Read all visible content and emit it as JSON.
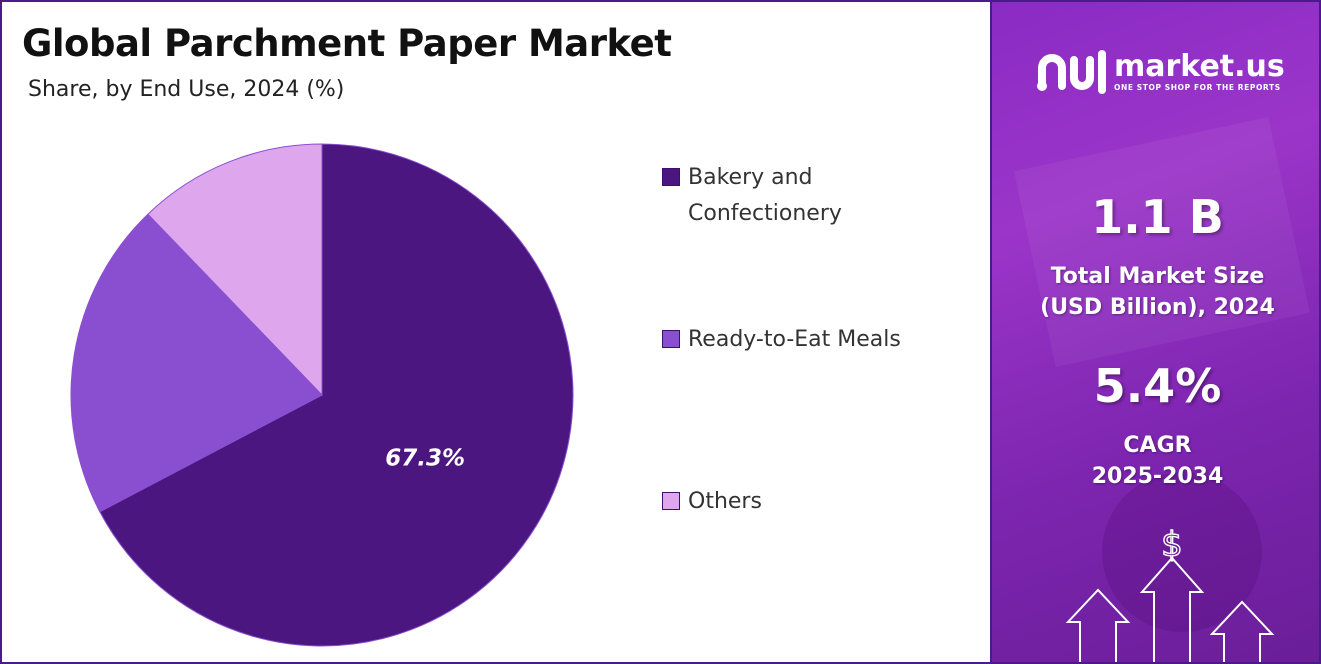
{
  "header": {
    "title": "Global Parchment Paper Market",
    "subtitle": "Share, by End Use, 2024 (%)"
  },
  "chart_data": {
    "type": "pie",
    "title": "Global Parchment Paper Market",
    "subtitle": "Share, by End Use, 2024 (%)",
    "categories": [
      "Bakery and Confectionery",
      "Ready-to-Eat Meals",
      "Others"
    ],
    "values": [
      67.3,
      20.5,
      12.2
    ],
    "data_labels": [
      "67.3%",
      "",
      ""
    ],
    "colors": [
      "#4b167f",
      "#8a4fd0",
      "#dea6ec"
    ],
    "legend_position": "right"
  },
  "legend": [
    {
      "label_line1": "Bakery and",
      "label_line2": "Confectionery",
      "color": "#4b167f"
    },
    {
      "label_line1": "Ready-to-Eat Meals",
      "label_line2": "",
      "color": "#8a4fd0"
    },
    {
      "label_line1": "Others",
      "label_line2": "",
      "color": "#dea6ec"
    }
  ],
  "sidebar": {
    "brand": "market.us",
    "tagline": "ONE STOP SHOP FOR THE REPORTS",
    "market_size": "1.1 B",
    "market_size_label_1": "Total Market Size",
    "market_size_label_2": "(USD Billion), 2024",
    "cagr": "5.4%",
    "cagr_label_1": "CAGR",
    "cagr_label_2": "2025-2034",
    "dollar_symbol": "$"
  }
}
